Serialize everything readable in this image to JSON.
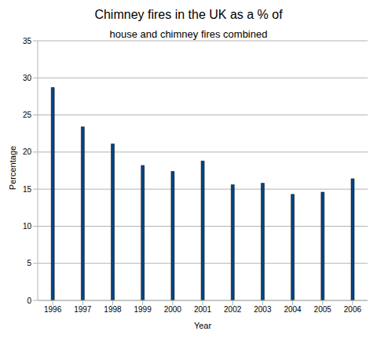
{
  "chart_data": {
    "type": "bar",
    "title": "Chimney fires in the UK as a % of",
    "subtitle": "house and chimney fires combined",
    "x_label": "Year",
    "y_label": "Percentage",
    "categories": [
      "1996",
      "1997",
      "1998",
      "1999",
      "2000",
      "2001",
      "2002",
      "2003",
      "2004",
      "2005",
      "2006"
    ],
    "values": [
      28.7,
      23.4,
      21.1,
      18.2,
      17.4,
      18.8,
      15.6,
      15.8,
      14.3,
      14.6,
      16.4
    ],
    "color": "#004586",
    "ylim": [
      0,
      35
    ],
    "yticks": [
      0,
      5,
      10,
      15,
      20,
      25,
      30,
      35
    ],
    "grid": true
  }
}
